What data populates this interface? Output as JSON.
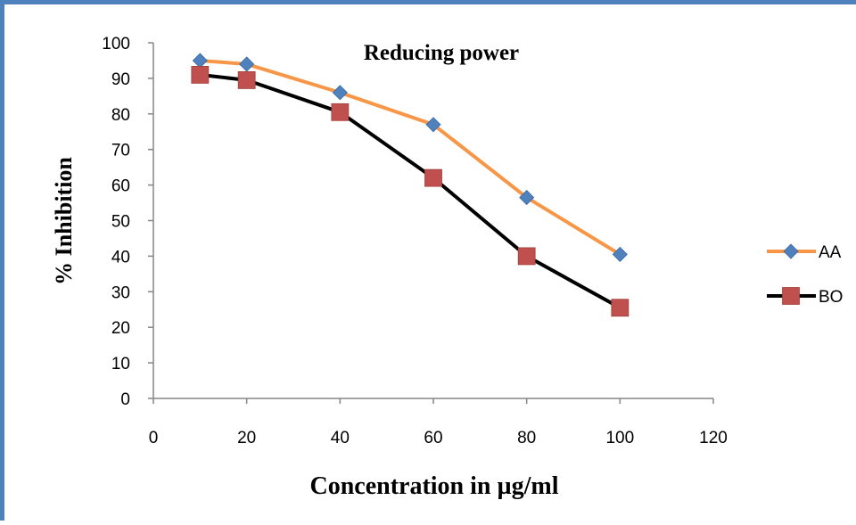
{
  "chart_data": {
    "type": "line",
    "title": "Reducing power",
    "xlabel": "Concentration in µg/ml",
    "ylabel": "% Inhibition",
    "x": [
      10,
      20,
      40,
      60,
      80,
      100
    ],
    "xlim": [
      0,
      120
    ],
    "ylim": [
      0,
      100
    ],
    "xticks": [
      "0",
      "20",
      "40",
      "60",
      "80",
      "100",
      "120"
    ],
    "yticks": [
      "0",
      "10",
      "20",
      "30",
      "40",
      "50",
      "60",
      "70",
      "80",
      "90",
      "100"
    ],
    "grid": false,
    "legend_position": "right",
    "series": [
      {
        "name": "AA",
        "values": [
          95,
          94,
          86,
          77,
          56.5,
          40.5
        ],
        "line_color": "#f79646",
        "marker": "diamond",
        "marker_color": "#4f81bd"
      },
      {
        "name": "BO",
        "values": [
          91,
          89.5,
          80.5,
          62,
          40,
          25.5
        ],
        "line_color": "#000000",
        "marker": "square",
        "marker_color": "#c0504d"
      }
    ]
  }
}
